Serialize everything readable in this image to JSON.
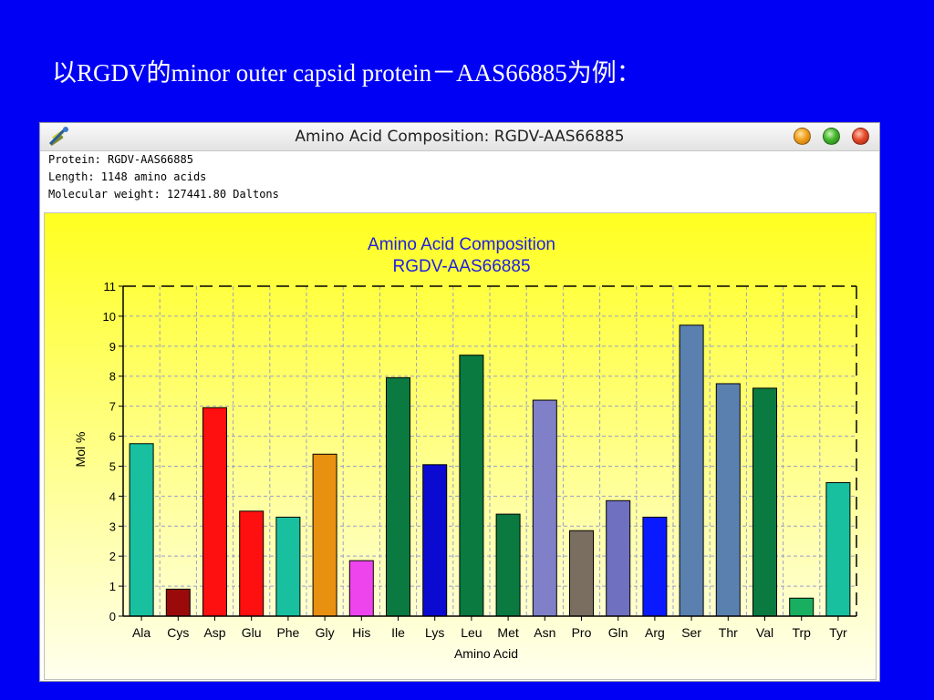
{
  "slide": {
    "title": "以RGDV的minor outer capsid protein－AAS66885为例："
  },
  "window": {
    "title": "Amino Acid Composition: RGDV-AAS66885",
    "icon": "dna-icon",
    "buttons": [
      "minimize-button",
      "maximize-button",
      "close-button"
    ]
  },
  "info": {
    "protein": "Protein: RGDV-AAS66885",
    "length": "Length: 1148 amino acids",
    "weight": "Molecular weight: 127441.80 Daltons"
  },
  "chart_data": {
    "type": "bar",
    "title": "Amino Acid Composition",
    "subtitle": "RGDV-AAS66885",
    "xlabel": "Amino Acid",
    "ylabel": "Mol %",
    "ylim": [
      0,
      11
    ],
    "yticks": [
      0,
      1,
      2,
      3,
      4,
      5,
      6,
      7,
      8,
      9,
      10,
      11
    ],
    "grid": true,
    "categories": [
      "Ala",
      "Cys",
      "Asp",
      "Glu",
      "Phe",
      "Gly",
      "His",
      "Ile",
      "Lys",
      "Leu",
      "Met",
      "Asn",
      "Pro",
      "Gln",
      "Arg",
      "Ser",
      "Thr",
      "Val",
      "Trp",
      "Tyr"
    ],
    "values": [
      5.75,
      0.9,
      6.95,
      3.5,
      3.3,
      5.4,
      1.85,
      7.95,
      5.05,
      8.7,
      3.4,
      7.2,
      2.85,
      3.85,
      3.3,
      9.7,
      7.75,
      7.6,
      0.6,
      4.45
    ],
    "colors": [
      "#18c0a0",
      "#9a0a0a",
      "#ff1010",
      "#ff1010",
      "#18c0a0",
      "#e89010",
      "#ee44ee",
      "#0a7a40",
      "#0a0ad0",
      "#0a7a40",
      "#0a7a40",
      "#8080c8",
      "#7a6e60",
      "#7070c0",
      "#0a1aff",
      "#5a80b0",
      "#5a80b0",
      "#0a7a40",
      "#18b060",
      "#18c0a0"
    ]
  }
}
